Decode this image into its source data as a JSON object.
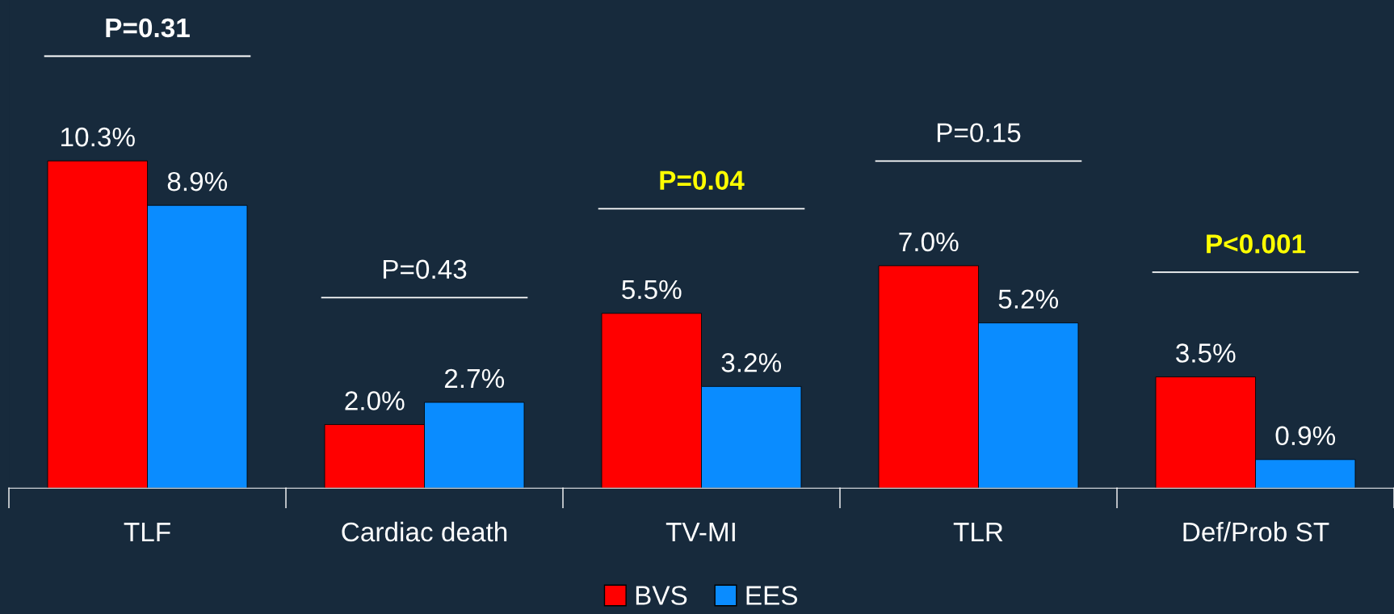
{
  "chart_data": {
    "type": "bar",
    "categories": [
      "TLF",
      "Cardiac death",
      "TV-MI",
      "TLR",
      "Def/Prob ST"
    ],
    "series": [
      {
        "name": "BVS",
        "color": "#ff0000",
        "values": [
          10.3,
          2.0,
          5.5,
          7.0,
          3.5
        ],
        "value_labels": [
          "10.3%",
          "2.0%",
          "5.5%",
          "7.0%",
          "3.5%"
        ]
      },
      {
        "name": "EES",
        "color": "#0a8cff",
        "values": [
          8.9,
          2.7,
          3.2,
          5.2,
          0.9
        ],
        "value_labels": [
          "8.9%",
          "2.7%",
          "3.2%",
          "5.2%",
          "0.9%"
        ]
      }
    ],
    "annotations": [
      "P=0.31",
      "P=0.43",
      "P=0.04",
      "P=0.15",
      "P<0.001"
    ],
    "grid": false,
    "legend": "bottom"
  }
}
